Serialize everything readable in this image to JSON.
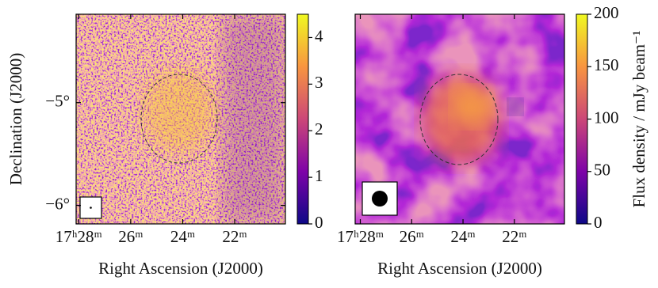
{
  "chart_data": [
    {
      "type": "image",
      "xlabel": "Right Ascension (J2000)",
      "ylabel": "Declination (J2000)",
      "xlim": [
        28.1,
        20.05
      ],
      "xticks": [
        {
          "value": 28,
          "label": "17ʰ28ᵐ"
        },
        {
          "value": 26,
          "label": "26ᵐ"
        },
        {
          "value": 24,
          "label": "24ᵐ"
        },
        {
          "value": 22,
          "label": "22ᵐ"
        }
      ],
      "ylim": [
        -6.18,
        -4.14
      ],
      "yticks": [
        {
          "value": -5,
          "label": "−5°"
        },
        {
          "value": -6,
          "label": "−6°"
        }
      ],
      "clim": [
        0,
        4.5
      ],
      "cticks": [
        0,
        1,
        2,
        3,
        4
      ]
    },
    {
      "type": "image",
      "xlabel": "Right Ascension (J2000)",
      "xlim": [
        28.2,
        20.05
      ],
      "xticks": [
        {
          "value": 28,
          "label": "17ʰ28ᵐ"
        },
        {
          "value": 26,
          "label": "26ᵐ"
        },
        {
          "value": 24,
          "label": "24ᵐ"
        },
        {
          "value": 22,
          "label": "22ᵐ"
        }
      ],
      "clim": [
        0,
        200
      ],
      "cticks": [
        0,
        50,
        100,
        150,
        200
      ],
      "clabel": "Flux density / mJy beam⁻¹"
    }
  ]
}
